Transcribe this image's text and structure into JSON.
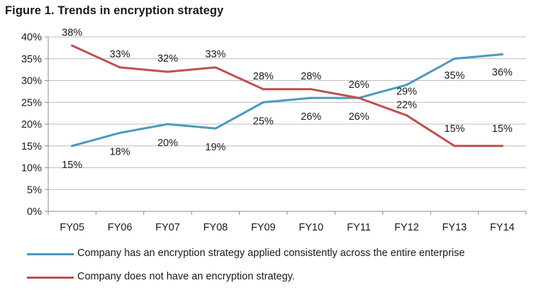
{
  "figure_title": "Figure 1.  Trends in encryption strategy",
  "chart_data": {
    "type": "line",
    "title": "Figure 1.  Trends in encryption strategy",
    "categories": [
      "FY05",
      "FY06",
      "FY07",
      "FY08",
      "FY09",
      "FY10",
      "FY11",
      "FY12",
      "FY13",
      "FY14"
    ],
    "ylim": [
      0,
      40
    ],
    "yticks": [
      "0%",
      "5%",
      "10%",
      "15%",
      "20%",
      "25%",
      "30%",
      "35%",
      "40%"
    ],
    "grid": true,
    "legend_position": "bottom",
    "series": [
      {
        "name": "Company has an encryption strategy applied consistently across the entire enterprise",
        "color": "#4a9bbd",
        "values": [
          15,
          18,
          20,
          19,
          25,
          26,
          26,
          29,
          35,
          36
        ],
        "labels": [
          "15%",
          "18%",
          "20%",
          "19%",
          "25%",
          "26%",
          "26%",
          "29%",
          "35%",
          "36%"
        ]
      },
      {
        "name": "Company does not have an encryption strategy.",
        "color": "#c0504d",
        "values": [
          38,
          33,
          32,
          33,
          28,
          28,
          26,
          22,
          15,
          15
        ],
        "labels": [
          "38%",
          "33%",
          "32%",
          "33%",
          "28%",
          "28%",
          "26%",
          "22%",
          "15%",
          "15%"
        ]
      }
    ]
  }
}
